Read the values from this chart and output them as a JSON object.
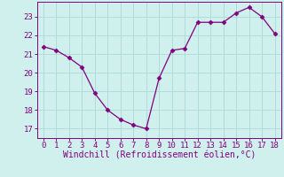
{
  "x": [
    0,
    1,
    2,
    3,
    4,
    5,
    6,
    7,
    8,
    9,
    10,
    11,
    12,
    13,
    14,
    15,
    16,
    17,
    18
  ],
  "y": [
    21.4,
    21.2,
    20.8,
    20.3,
    18.9,
    18.0,
    17.5,
    17.2,
    17.0,
    19.7,
    21.2,
    21.3,
    22.7,
    22.7,
    22.7,
    23.2,
    23.5,
    23.0,
    22.1
  ],
  "line_color": "#800080",
  "marker": "D",
  "marker_size": 2.5,
  "bg_color": "#cff0ec",
  "grid_color": "#b0ddd8",
  "xlabel": "Windchill (Refroidissement éolien,°C)",
  "xlabel_color": "#800080",
  "tick_color": "#800080",
  "xlim": [
    -0.5,
    18.5
  ],
  "ylim": [
    16.5,
    23.8
  ],
  "yticks": [
    17,
    18,
    19,
    20,
    21,
    22,
    23
  ],
  "xticks": [
    0,
    1,
    2,
    3,
    4,
    5,
    6,
    7,
    8,
    9,
    10,
    11,
    12,
    13,
    14,
    15,
    16,
    17,
    18
  ],
  "tick_fontsize": 6.5,
  "xlabel_fontsize": 7.0
}
